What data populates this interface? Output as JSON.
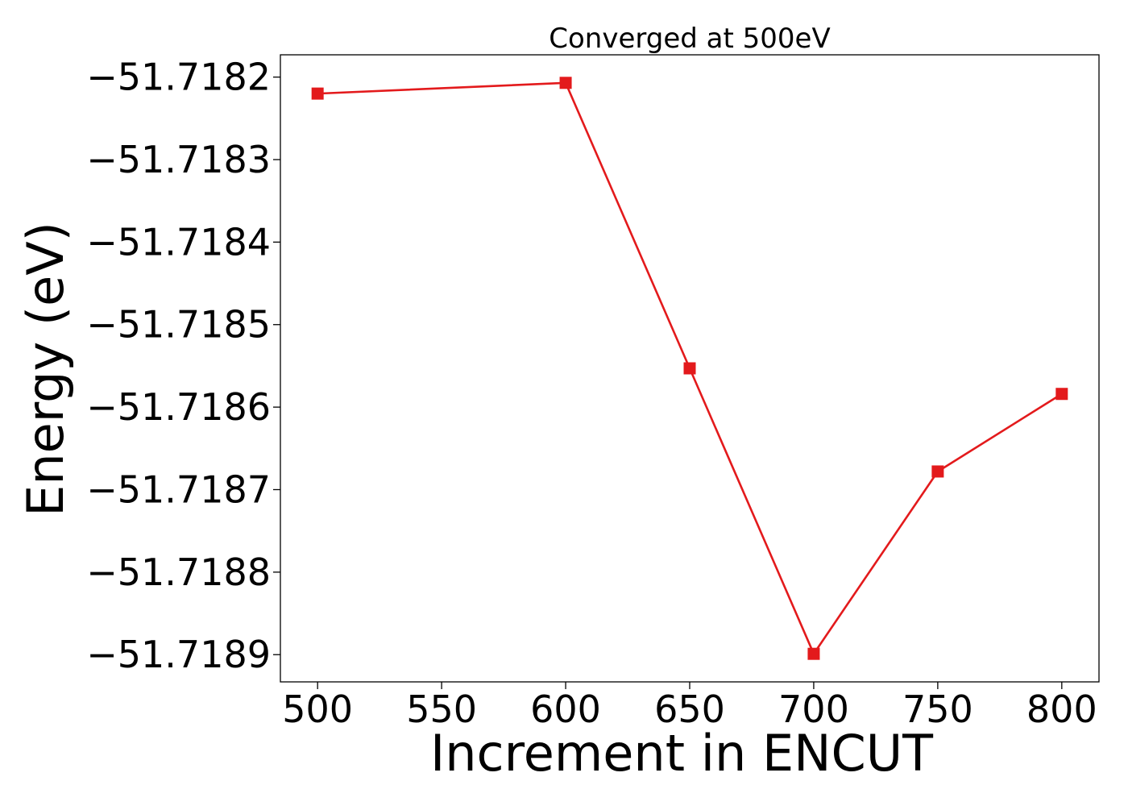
{
  "chart_data": {
    "type": "line",
    "title": "Converged at 500eV",
    "xlabel": "Increment in ENCUT",
    "ylabel": "Energy (eV)",
    "x": [
      500,
      600,
      650,
      700,
      750,
      800
    ],
    "series": [
      {
        "values": [
          -51.71822,
          -51.718207,
          -51.718553,
          -51.718899,
          -51.718678,
          -51.718584
        ],
        "color": "#e31a1c",
        "marker": "square"
      }
    ],
    "xlim": [
      485,
      815
    ],
    "ylim": [
      -51.718933,
      -51.718173
    ],
    "xticks": [
      500,
      550,
      600,
      650,
      700,
      750,
      800
    ],
    "xtick_labels": [
      "500",
      "550",
      "600",
      "650",
      "700",
      "750",
      "800"
    ],
    "yticks": [
      -51.7189,
      -51.7188,
      -51.7187,
      -51.7186,
      -51.7185,
      -51.7184,
      -51.7183,
      -51.7182
    ],
    "ytick_labels": [
      "−51.7189",
      "−51.7188",
      "−51.7187",
      "−51.7186",
      "−51.7185",
      "−51.7184",
      "−51.7183",
      "−51.7182"
    ],
    "grid": false,
    "legend": "none"
  }
}
